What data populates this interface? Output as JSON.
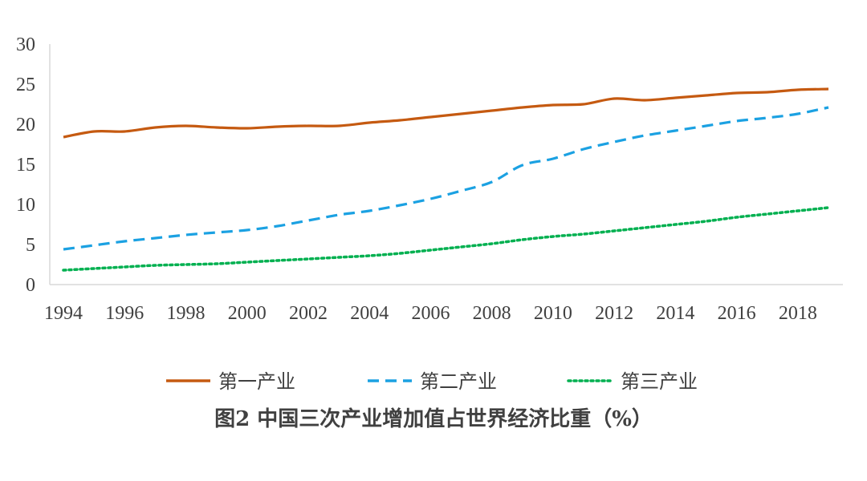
{
  "chart_data": {
    "type": "line",
    "title": "图2  中国三次产业增加值占世界经济比重（%）",
    "xlabel": "",
    "ylabel": "",
    "ylim": [
      0,
      30
    ],
    "yticks": [
      0,
      5,
      10,
      15,
      20,
      25,
      30
    ],
    "xticks": [
      1994,
      1996,
      1998,
      2000,
      2002,
      2004,
      2006,
      2008,
      2010,
      2012,
      2014,
      2016,
      2018
    ],
    "grid": false,
    "legend_position": "bottom",
    "x": [
      1994,
      1995,
      1996,
      1997,
      1998,
      1999,
      2000,
      2001,
      2002,
      2003,
      2004,
      2005,
      2006,
      2007,
      2008,
      2009,
      2010,
      2011,
      2012,
      2013,
      2014,
      2015,
      2016,
      2017,
      2018,
      2019
    ],
    "series": [
      {
        "name": "第一产业",
        "color": "#C55A11",
        "style": "solid",
        "values": [
          18.4,
          19.1,
          19.1,
          19.6,
          19.8,
          19.6,
          19.5,
          19.7,
          19.8,
          19.8,
          20.2,
          20.5,
          20.9,
          21.3,
          21.7,
          22.1,
          22.4,
          22.5,
          23.2,
          23.0,
          23.3,
          23.6,
          23.9,
          24.0,
          24.3,
          24.4
        ]
      },
      {
        "name": "第二产业",
        "color": "#1BA1E2",
        "style": "dashed",
        "values": [
          4.4,
          4.9,
          5.4,
          5.8,
          6.2,
          6.5,
          6.8,
          7.3,
          8.0,
          8.7,
          9.2,
          9.9,
          10.7,
          11.7,
          12.8,
          14.9,
          15.7,
          16.9,
          17.8,
          18.6,
          19.2,
          19.8,
          20.4,
          20.8,
          21.3,
          22.1
        ]
      },
      {
        "name": "第三产业",
        "color": "#00B050",
        "style": "dotted",
        "values": [
          1.8,
          2.0,
          2.2,
          2.4,
          2.5,
          2.6,
          2.8,
          3.0,
          3.2,
          3.4,
          3.6,
          3.9,
          4.3,
          4.7,
          5.1,
          5.6,
          6.0,
          6.3,
          6.7,
          7.1,
          7.5,
          7.9,
          8.4,
          8.8,
          9.2,
          9.6
        ]
      }
    ]
  }
}
